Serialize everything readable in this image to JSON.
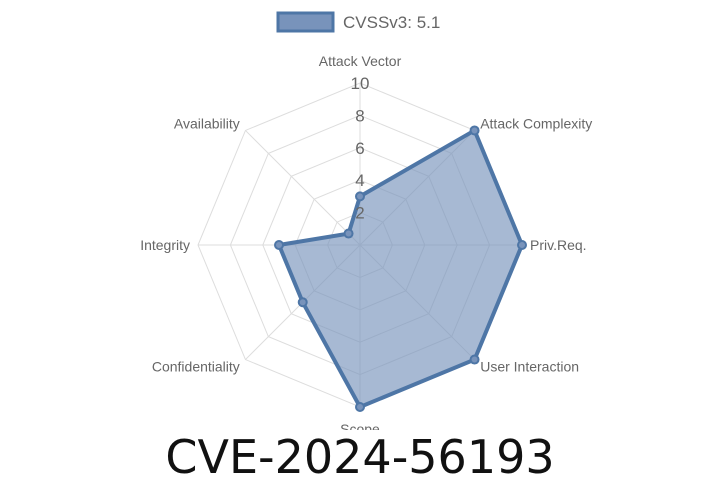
{
  "chart_data": {
    "type": "radar",
    "axes": [
      "Attack Vector",
      "Attack Complexity",
      "Priv.Req.",
      "User Interaction",
      "Scope",
      "Confidentiality",
      "Integrity",
      "Availability"
    ],
    "series": [
      {
        "name": "CVSSv3: 5.1",
        "values": [
          3.0,
          10.0,
          10.0,
          10.0,
          10.0,
          5.0,
          5.0,
          1.0
        ]
      }
    ],
    "r_range": [
      0,
      10
    ],
    "ticks": [
      "2",
      "4",
      "6",
      "8",
      "10"
    ],
    "grid": true,
    "legend_position": "top",
    "colors": {
      "line": "#4e76a6",
      "fill": "#7893bb",
      "grid": "#dddddd",
      "text": "#666666"
    }
  },
  "title": "CVE-2024-56193"
}
